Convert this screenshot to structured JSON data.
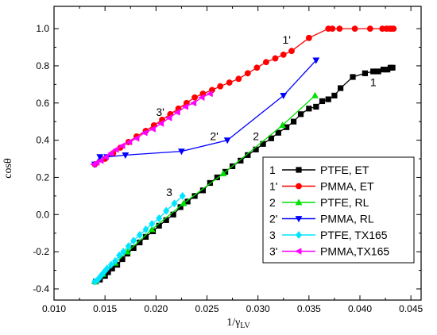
{
  "chart_data": {
    "type": "line",
    "xlabel": "1/γ",
    "xlabel_sub": "LV",
    "ylabel": "cosθ",
    "xlim": [
      0.01,
      0.046
    ],
    "ylim": [
      -0.46,
      1.12
    ],
    "xticks": [
      "0.010",
      "0.015",
      "0.020",
      "0.025",
      "0.030",
      "0.035",
      "0.040",
      "0.045"
    ],
    "xtick_values": [
      0.01,
      0.015,
      0.02,
      0.025,
      0.03,
      0.035,
      0.04,
      0.045
    ],
    "yticks": [
      "-0.4",
      "-0.2",
      "0.0",
      "0.2",
      "0.4",
      "0.6",
      "0.8",
      "1.0"
    ],
    "ytick_values": [
      -0.4,
      -0.2,
      0.0,
      0.2,
      0.4,
      0.6,
      0.8,
      1.0
    ],
    "grid": false,
    "legend_position": "bottom-right",
    "series": [
      {
        "name": "PTFE, ET",
        "legend_num": "1",
        "color": "#000000",
        "marker": "square",
        "x": [
          0.0141,
          0.0145,
          0.015,
          0.0153,
          0.0157,
          0.0162,
          0.0167,
          0.0172,
          0.0178,
          0.0184,
          0.019,
          0.0197,
          0.0203,
          0.021,
          0.0217,
          0.0224,
          0.0231,
          0.0238,
          0.0246,
          0.0253,
          0.026,
          0.0268,
          0.0275,
          0.0283,
          0.029,
          0.0298,
          0.0305,
          0.0313,
          0.032,
          0.0328,
          0.0335,
          0.0342,
          0.035,
          0.0357,
          0.0363,
          0.0369,
          0.0375,
          0.0381,
          0.0393,
          0.0405,
          0.0413,
          0.0418,
          0.0423,
          0.0427,
          0.043,
          0.0432
        ],
        "y": [
          -0.36,
          -0.35,
          -0.33,
          -0.31,
          -0.29,
          -0.27,
          -0.24,
          -0.21,
          -0.18,
          -0.15,
          -0.12,
          -0.09,
          -0.06,
          -0.03,
          0.0,
          0.04,
          0.07,
          0.1,
          0.13,
          0.17,
          0.2,
          0.23,
          0.26,
          0.29,
          0.32,
          0.35,
          0.38,
          0.41,
          0.44,
          0.47,
          0.5,
          0.54,
          0.57,
          0.58,
          0.61,
          0.62,
          0.64,
          0.68,
          0.74,
          0.76,
          0.77,
          0.77,
          0.78,
          0.78,
          0.79,
          0.79
        ]
      },
      {
        "name": "PMMA, ET",
        "legend_num": "1'",
        "color": "#ff0000",
        "marker": "circle",
        "x": [
          0.014,
          0.015,
          0.0158,
          0.0165,
          0.0173,
          0.0181,
          0.019,
          0.0198,
          0.0206,
          0.0214,
          0.0222,
          0.023,
          0.0238,
          0.0246,
          0.0255,
          0.0263,
          0.0272,
          0.0281,
          0.029,
          0.0299,
          0.0308,
          0.0317,
          0.0325,
          0.0333,
          0.035,
          0.0369,
          0.0373,
          0.038,
          0.0395,
          0.041,
          0.0422,
          0.0426,
          0.0429,
          0.0431,
          0.0433
        ],
        "y": [
          0.27,
          0.3,
          0.33,
          0.36,
          0.39,
          0.42,
          0.45,
          0.48,
          0.51,
          0.54,
          0.57,
          0.6,
          0.63,
          0.65,
          0.67,
          0.69,
          0.71,
          0.73,
          0.76,
          0.79,
          0.82,
          0.84,
          0.86,
          0.88,
          0.95,
          1.0,
          1.0,
          1.0,
          1.0,
          1.0,
          1.0,
          1.0,
          1.0,
          1.0,
          1.0
        ]
      },
      {
        "name": "PTFE, RL",
        "legend_num": "2",
        "color": "#00e000",
        "marker": "triangle-up",
        "x": [
          0.014,
          0.0148,
          0.016,
          0.0172,
          0.0196,
          0.0227,
          0.0266,
          0.0324,
          0.0356
        ],
        "y": [
          -0.36,
          -0.32,
          -0.26,
          -0.2,
          -0.08,
          0.06,
          0.22,
          0.48,
          0.64
        ]
      },
      {
        "name": "PMMA, RL",
        "legend_num": "2'",
        "color": "#0000ff",
        "marker": "triangle-down",
        "x": [
          0.014,
          0.0145,
          0.0152,
          0.017,
          0.0225,
          0.027,
          0.0325,
          0.0357
        ],
        "y": [
          0.27,
          0.31,
          0.31,
          0.32,
          0.34,
          0.4,
          0.64,
          0.83
        ]
      },
      {
        "name": "PTFE, TX165",
        "legend_num": "3",
        "color": "#00e5ff",
        "marker": "diamond",
        "x": [
          0.014,
          0.0143,
          0.0146,
          0.0149,
          0.0152,
          0.0156,
          0.016,
          0.0164,
          0.0168,
          0.0173,
          0.0178,
          0.0184,
          0.019,
          0.0196,
          0.0203,
          0.021,
          0.0218,
          0.0226
        ],
        "y": [
          -0.36,
          -0.35,
          -0.33,
          -0.31,
          -0.29,
          -0.27,
          -0.25,
          -0.22,
          -0.2,
          -0.17,
          -0.14,
          -0.11,
          -0.08,
          -0.05,
          -0.02,
          0.02,
          0.06,
          0.1
        ]
      },
      {
        "name": "PMMA,TX165",
        "legend_num": "3'",
        "color": "#ff00ff",
        "marker": "triangle-left",
        "x": [
          0.0139,
          0.0142,
          0.0146,
          0.0151,
          0.0156,
          0.0161,
          0.0167,
          0.0174,
          0.0181,
          0.0189,
          0.0197,
          0.0205,
          0.0213,
          0.0221,
          0.0229,
          0.0237,
          0.0245,
          0.0253
        ],
        "y": [
          0.27,
          0.28,
          0.29,
          0.31,
          0.33,
          0.35,
          0.37,
          0.39,
          0.41,
          0.44,
          0.46,
          0.49,
          0.52,
          0.55,
          0.58,
          0.6,
          0.63,
          0.65
        ]
      }
    ],
    "annotations": [
      {
        "text": "1",
        "x": 0.041,
        "y": 0.69
      },
      {
        "text": "1'",
        "x": 0.0324,
        "y": 0.92
      },
      {
        "text": "2",
        "x": 0.0295,
        "y": 0.4
      },
      {
        "text": "2'",
        "x": 0.0253,
        "y": 0.4
      },
      {
        "text": "3",
        "x": 0.021,
        "y": 0.1
      },
      {
        "text": "3'",
        "x": 0.02,
        "y": 0.53
      }
    ]
  }
}
